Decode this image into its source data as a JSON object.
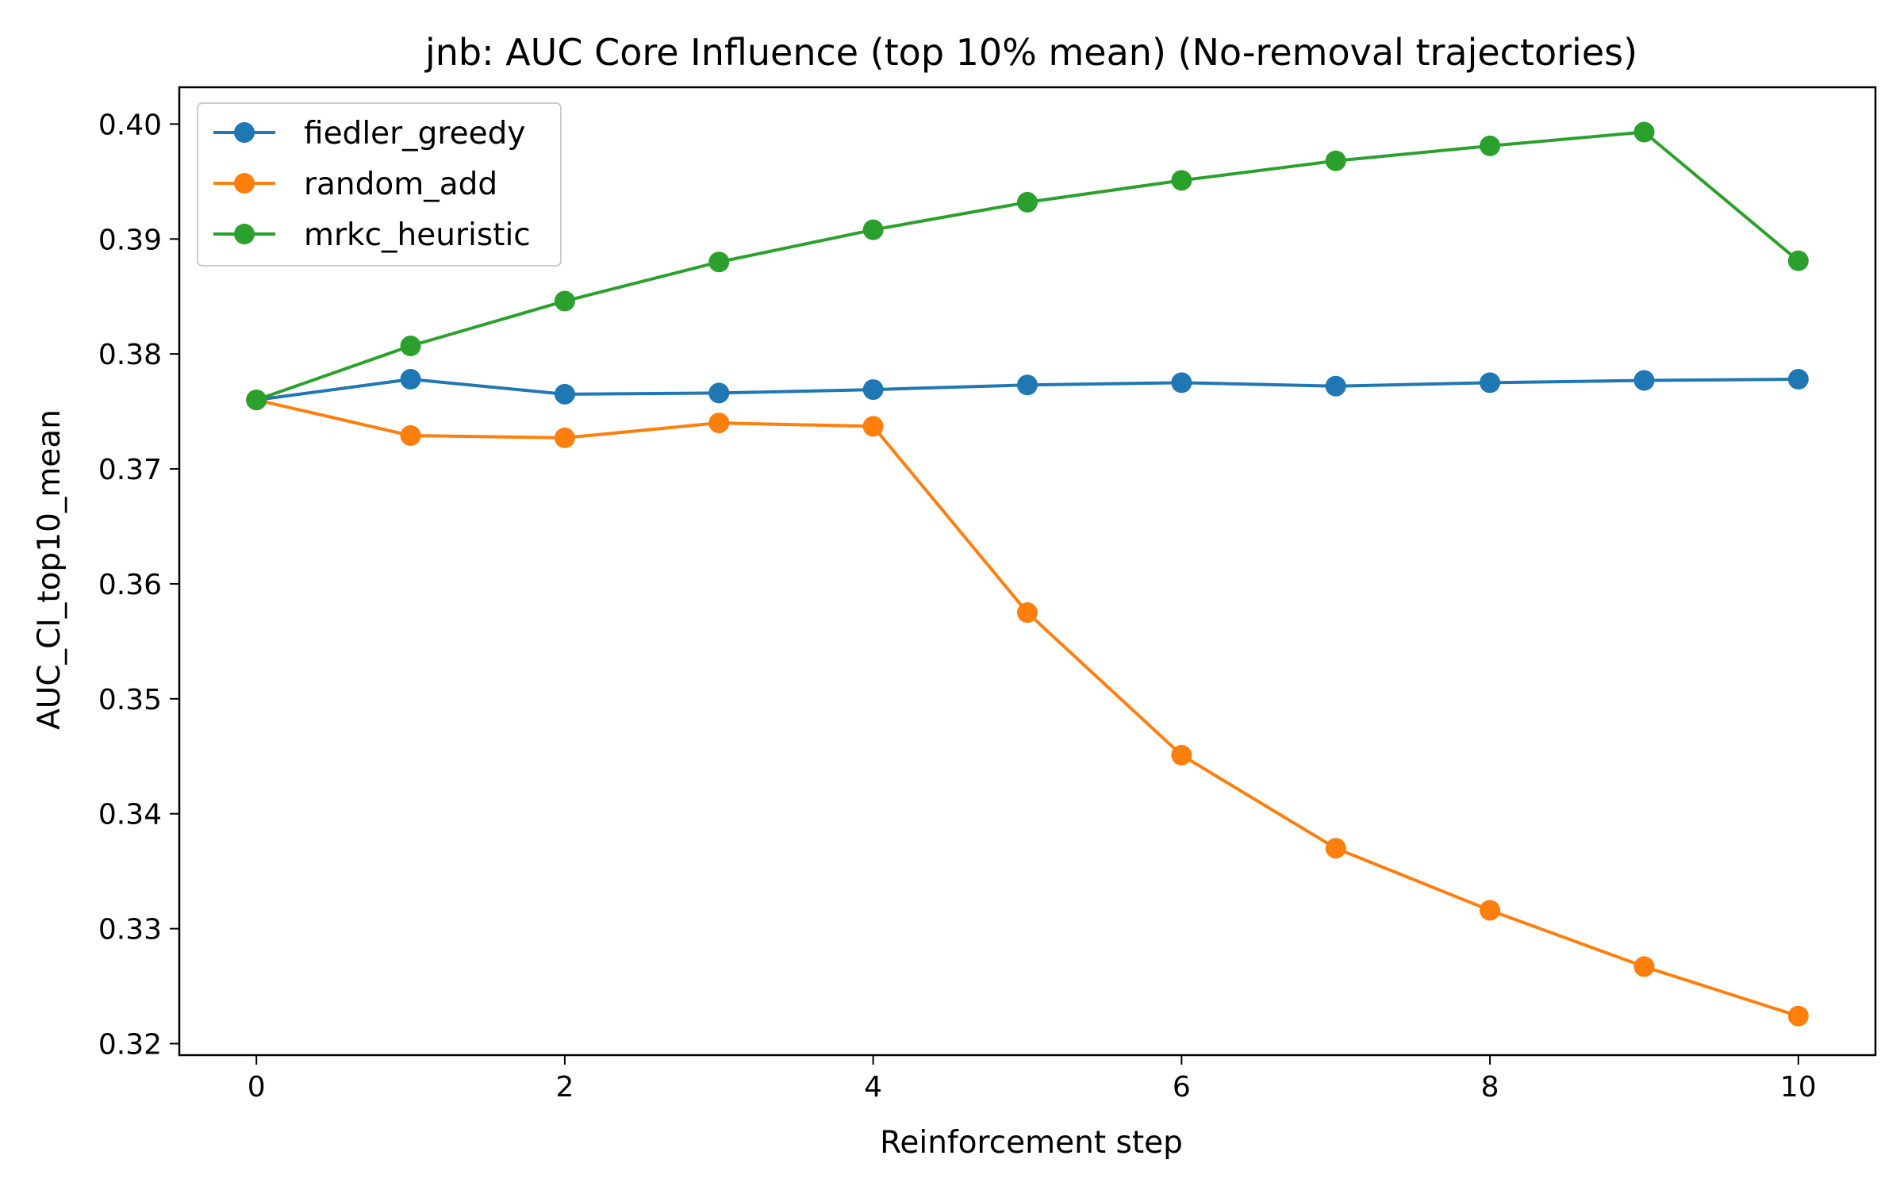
{
  "chart_data": {
    "type": "line",
    "title": "jnb: AUC Core Influence (top 10% mean) (No-removal trajectories)",
    "xlabel": "Reinforcement step",
    "ylabel": "AUC_CI_top10_mean",
    "x": [
      0,
      1,
      2,
      3,
      4,
      5,
      6,
      7,
      8,
      9,
      10
    ],
    "xlim": [
      -0.5,
      10.5
    ],
    "ylim": [
      0.319,
      0.4032
    ],
    "xticks": [
      0,
      2,
      4,
      6,
      8,
      10
    ],
    "xtick_labels": [
      "0",
      "2",
      "4",
      "6",
      "8",
      "10"
    ],
    "yticks": [
      0.32,
      0.33,
      0.34,
      0.35,
      0.36,
      0.37,
      0.38,
      0.39,
      0.4
    ],
    "ytick_labels": [
      "0.32",
      "0.33",
      "0.34",
      "0.35",
      "0.36",
      "0.37",
      "0.38",
      "0.39",
      "0.40"
    ],
    "grid": false,
    "legend_position": "upper-left",
    "series": [
      {
        "name": "fiedler_greedy",
        "color": "#1f77b4",
        "values": [
          0.376,
          0.3778,
          0.3765,
          0.3766,
          0.3769,
          0.3773,
          0.3775,
          0.3772,
          0.3775,
          0.3777,
          0.3778
        ]
      },
      {
        "name": "random_add",
        "color": "#ff7f0e",
        "values": [
          0.376,
          0.3729,
          0.3727,
          0.374,
          0.3737,
          0.3575,
          0.3451,
          0.337,
          0.3316,
          0.3267,
          0.3224
        ]
      },
      {
        "name": "mrkc_heuristic",
        "color": "#2ca02c",
        "values": [
          0.376,
          0.3807,
          0.3846,
          0.388,
          0.3908,
          0.3932,
          0.3951,
          0.3968,
          0.3981,
          0.3993,
          0.3881
        ]
      }
    ]
  }
}
